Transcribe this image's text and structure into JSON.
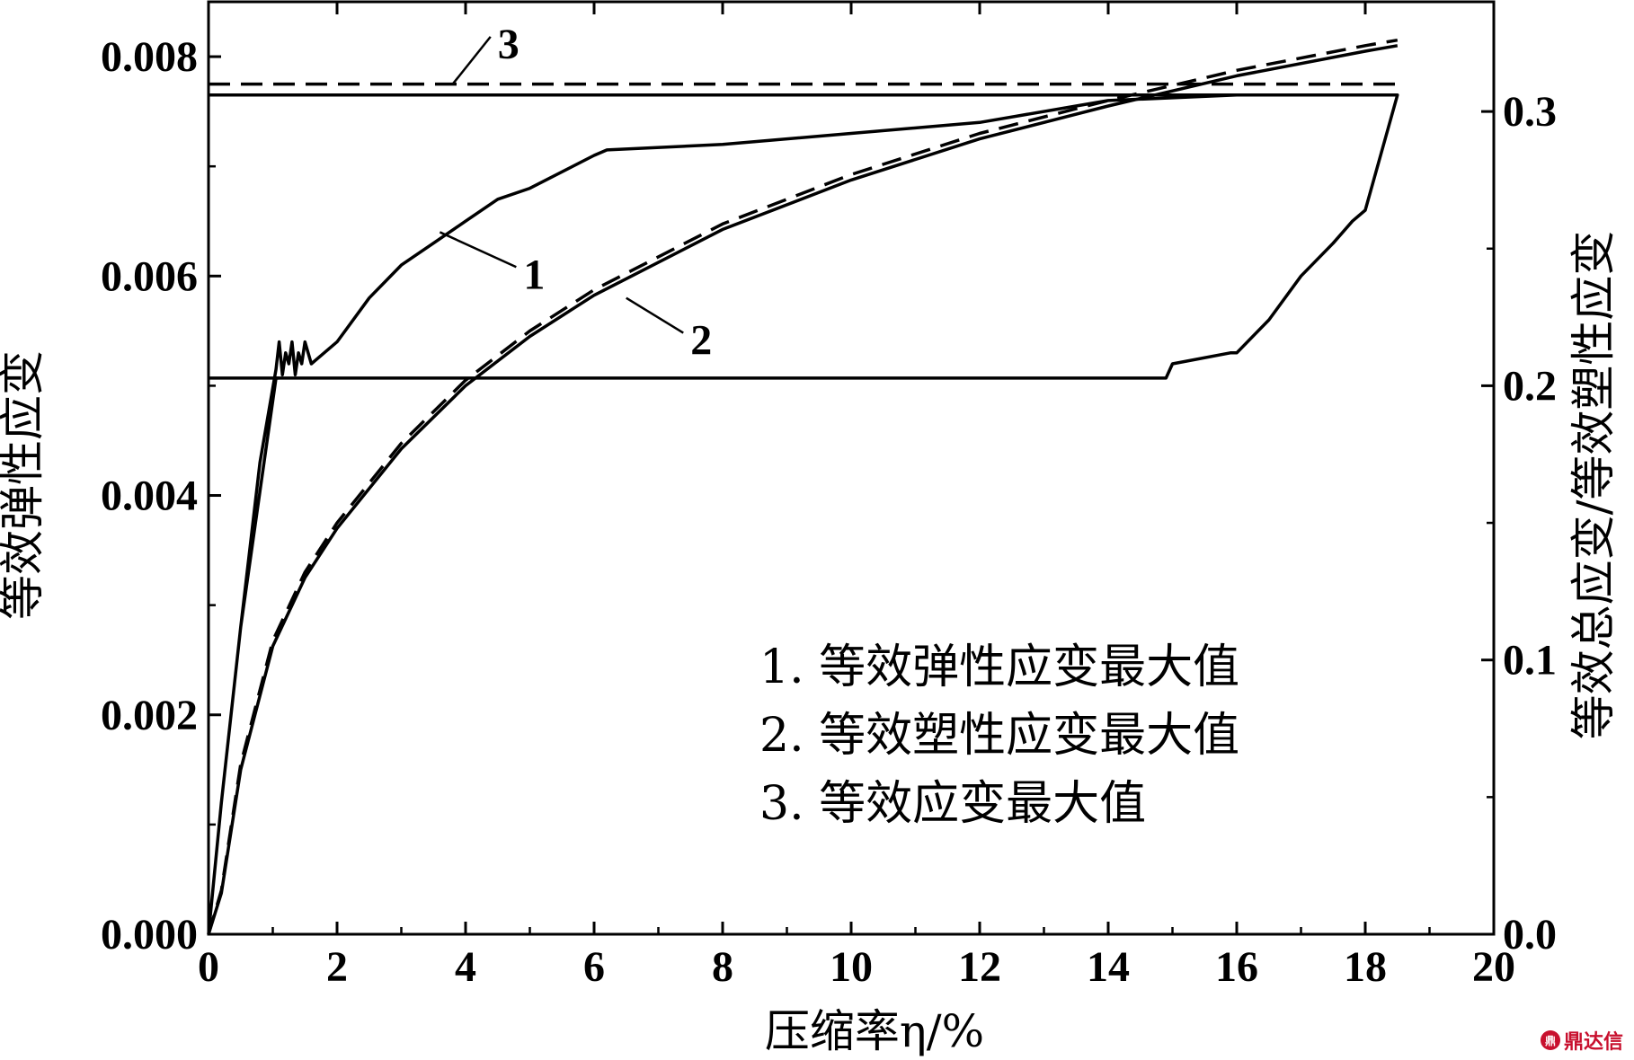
{
  "chart_data": {
    "type": "line",
    "title": "",
    "xlabel": "压缩率η/%",
    "ylabel_left": "等效弹性应变",
    "ylabel_right": "等效总应变/等效塑性应变",
    "xlim": [
      0,
      20
    ],
    "ylim_left": [
      0,
      0.0085
    ],
    "ylim_right": [
      0,
      0.34
    ],
    "x_ticks": [
      "0",
      "2",
      "4",
      "6",
      "8",
      "10",
      "12",
      "14",
      "16",
      "18",
      "20"
    ],
    "y_left_ticks": [
      "0.000",
      "0.002",
      "0.004",
      "0.006",
      "0.008"
    ],
    "y_right_ticks": [
      "0.0",
      "0.1",
      "0.2",
      "0.3"
    ],
    "grid": false,
    "legend_position": "center-right",
    "legend": [
      "1. 等效弹性应变最大值",
      "2. 等效塑性应变最大值",
      "3. 等效应变最大值"
    ],
    "series": [
      {
        "label": "1",
        "axis": "left",
        "style": "solid",
        "x": [
          0,
          0.2,
          0.5,
          0.8,
          1.05,
          1.1,
          1.15,
          1.2,
          1.25,
          1.3,
          1.35,
          1.4,
          1.45,
          1.5,
          1.6,
          1.7,
          2.0,
          2.5,
          3.0,
          3.5,
          4.0,
          4.5,
          5.0,
          6.0,
          6.2,
          8.0,
          10.0,
          12.0,
          14.0,
          16.0,
          17.0,
          18.0,
          18.5,
          18.0,
          17.8,
          17.5,
          17.0,
          16.5,
          16.0,
          15.9,
          15.0,
          14.9,
          10.0,
          5.0,
          1.1,
          1.05,
          0.5,
          0.2,
          0
        ],
        "y": [
          0,
          0.0012,
          0.0028,
          0.0043,
          0.00515,
          0.0054,
          0.0051,
          0.0053,
          0.0052,
          0.0054,
          0.0051,
          0.0053,
          0.0052,
          0.0054,
          0.0052,
          0.00525,
          0.0054,
          0.0058,
          0.0061,
          0.0063,
          0.0065,
          0.0067,
          0.0068,
          0.0071,
          0.00715,
          0.0072,
          0.0073,
          0.0074,
          0.0076,
          0.00765,
          0.00765,
          0.00765,
          0.00765,
          0.0066,
          0.0065,
          0.0063,
          0.006,
          0.0056,
          0.0053,
          0.0053,
          0.0052,
          0.00507,
          0.00507,
          0.00507,
          0.00507,
          0.00507,
          0.0028,
          0.0012,
          0
        ]
      },
      {
        "label": "2",
        "axis": "right",
        "style": "solid",
        "x": [
          0,
          0.2,
          0.5,
          1.0,
          1.5,
          2.0,
          3.0,
          4.0,
          5.0,
          6.0,
          8.0,
          10.0,
          12.0,
          14.0,
          16.0,
          18.0,
          18.5
        ],
        "y": [
          0,
          0.015,
          0.06,
          0.105,
          0.13,
          0.148,
          0.177,
          0.2,
          0.218,
          0.233,
          0.257,
          0.275,
          0.29,
          0.302,
          0.313,
          0.322,
          0.324
        ]
      },
      {
        "label": "3",
        "axis": "right",
        "style": "dashed",
        "x": [
          0,
          0.2,
          0.5,
          1.0,
          1.5,
          2.0,
          3.0,
          4.0,
          5.0,
          6.0,
          8.0,
          10.0,
          12.0,
          14.0,
          16.0,
          18.0,
          18.5
        ],
        "y": [
          0,
          0.016,
          0.062,
          0.107,
          0.132,
          0.15,
          0.179,
          0.202,
          0.22,
          0.235,
          0.259,
          0.277,
          0.292,
          0.304,
          0.315,
          0.324,
          0.326
        ]
      }
    ],
    "reference_lines": [
      {
        "label": "3",
        "axis": "left",
        "style": "dashed",
        "y": 0.00775,
        "x": [
          0,
          18.5
        ]
      },
      {
        "axis": "left",
        "style": "solid",
        "y": 0.00765,
        "x": [
          0,
          18.5
        ]
      },
      {
        "axis": "left",
        "style": "solid",
        "y": 0.00507,
        "x": [
          0,
          1.1
        ]
      }
    ],
    "curve_labels": [
      {
        "text": "1",
        "at": [
          4.9,
          0.006
        ]
      },
      {
        "text": "2",
        "at": [
          7.5,
          0.0054
        ]
      },
      {
        "text": "3",
        "at": [
          4.5,
          0.0081
        ]
      }
    ]
  },
  "watermark": {
    "icon_text": "鼎",
    "text": "鼎达信"
  }
}
